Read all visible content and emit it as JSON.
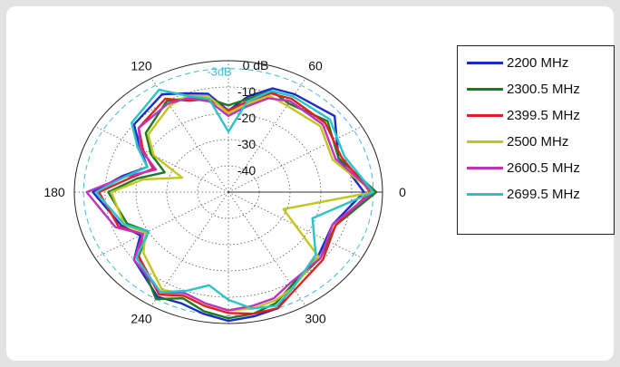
{
  "chart_data": {
    "type": "polar-line",
    "r_unit_label": "0 dB",
    "r_ticks": [
      {
        "value": 0,
        "label": "0 dB"
      },
      {
        "value": -10,
        "label": "-10"
      },
      {
        "value": -20,
        "label": "-20"
      },
      {
        "value": -30,
        "label": "-30"
      },
      {
        "value": -40,
        "label": "-40"
      }
    ],
    "reference_circle": {
      "value": -3,
      "label": "-3dB",
      "color": "#3fbfcf"
    },
    "angle_ticks": [
      {
        "angle": 0,
        "label": "0"
      },
      {
        "angle": 60,
        "label": "60"
      },
      {
        "angle": 120,
        "label": "120"
      },
      {
        "angle": 180,
        "label": "180"
      },
      {
        "angle": 240,
        "label": "240"
      },
      {
        "angle": 300,
        "label": "300"
      }
    ],
    "rlim": [
      -50,
      0
    ],
    "legend_position": "right",
    "series": [
      {
        "name": "2200 MHz",
        "color": "#1a2cc8",
        "angles": [
          0,
          20,
          40,
          60,
          70,
          80,
          90,
          100,
          110,
          120,
          140,
          150,
          160,
          170,
          180,
          200,
          210,
          220,
          240,
          250,
          260,
          270,
          280,
          290,
          300,
          320,
          340
        ],
        "values": [
          -6,
          -12,
          -5,
          -7,
          -8,
          -13,
          -19,
          -12,
          -10,
          -7,
          -10,
          -17,
          -22,
          -15,
          -6,
          -13,
          -17,
          -10,
          -4,
          -5,
          -3,
          -1,
          -2,
          -3,
          -9,
          -12,
          -14
        ]
      },
      {
        "name": "2300.5 MHz",
        "color": "#1e7a1e",
        "angles": [
          0,
          20,
          40,
          60,
          70,
          80,
          90,
          100,
          110,
          120,
          140,
          150,
          160,
          170,
          180,
          200,
          210,
          220,
          240,
          250,
          260,
          270,
          280,
          290,
          300,
          320,
          340
        ],
        "values": [
          -2,
          -12,
          -8,
          -11,
          -9,
          -14,
          -17,
          -14,
          -12,
          -10,
          -15,
          -21,
          -28,
          -20,
          -11,
          -15,
          -20,
          -12,
          -3,
          -7,
          -4,
          -2,
          -3,
          -5,
          -9,
          -11,
          -13
        ]
      },
      {
        "name": "2399.5 MHz",
        "color": "#e0201f",
        "angles": [
          0,
          20,
          40,
          60,
          70,
          80,
          90,
          100,
          110,
          120,
          140,
          150,
          160,
          170,
          180,
          200,
          210,
          220,
          240,
          250,
          260,
          270,
          280,
          290,
          300,
          320,
          340
        ],
        "values": [
          -4,
          -11,
          -9,
          -9,
          -10,
          -15,
          -19,
          -14,
          -13,
          -9,
          -12,
          -18,
          -24,
          -18,
          -8,
          -12,
          -18,
          -12,
          -5,
          -8,
          -6,
          -4,
          -3,
          -3,
          -7,
          -10,
          -13
        ]
      },
      {
        "name": "2500 MHz",
        "color": "#c4c41e",
        "angles": [
          0,
          20,
          40,
          60,
          70,
          80,
          90,
          100,
          110,
          120,
          140,
          150,
          160,
          170,
          180,
          200,
          210,
          220,
          240,
          250,
          260,
          270,
          280,
          290,
          300,
          320,
          340
        ],
        "values": [
          -3,
          -14,
          -11,
          -12,
          -11,
          -16,
          -20,
          -13,
          -11,
          -12,
          -16,
          -22,
          -34,
          -22,
          -12,
          -14,
          -19,
          -14,
          -7,
          -9,
          -7,
          -5,
          -5,
          -6,
          -8,
          -12,
          -31
        ]
      },
      {
        "name": "2600.5 MHz",
        "color": "#c033c0",
        "angles": [
          0,
          20,
          40,
          60,
          70,
          80,
          90,
          100,
          110,
          120,
          140,
          150,
          160,
          170,
          180,
          200,
          210,
          220,
          240,
          250,
          260,
          270,
          280,
          290,
          300,
          320,
          340
        ],
        "values": [
          -3,
          -13,
          -10,
          -10,
          -12,
          -17,
          -21,
          -15,
          -12,
          -11,
          -12,
          -17,
          -25,
          -16,
          -4,
          -11,
          -18,
          -10,
          -6,
          -9,
          -7,
          -5,
          -6,
          -7,
          -10,
          -11,
          -14
        ]
      },
      {
        "name": "2699.5 MHz",
        "color": "#28c4c8",
        "angles": [
          0,
          20,
          40,
          60,
          70,
          80,
          90,
          100,
          110,
          120,
          140,
          150,
          160,
          170,
          180,
          200,
          210,
          220,
          240,
          250,
          260,
          270,
          280,
          290,
          300,
          320,
          340
        ],
        "values": [
          -3,
          -10,
          -7,
          -8,
          -9,
          -15,
          -27,
          -14,
          -11,
          -5,
          -9,
          -16,
          -22,
          -16,
          -7,
          -14,
          -20,
          -11,
          -6,
          -10,
          -14,
          -9,
          -5,
          -4,
          -8,
          -13,
          -21
        ]
      }
    ]
  }
}
